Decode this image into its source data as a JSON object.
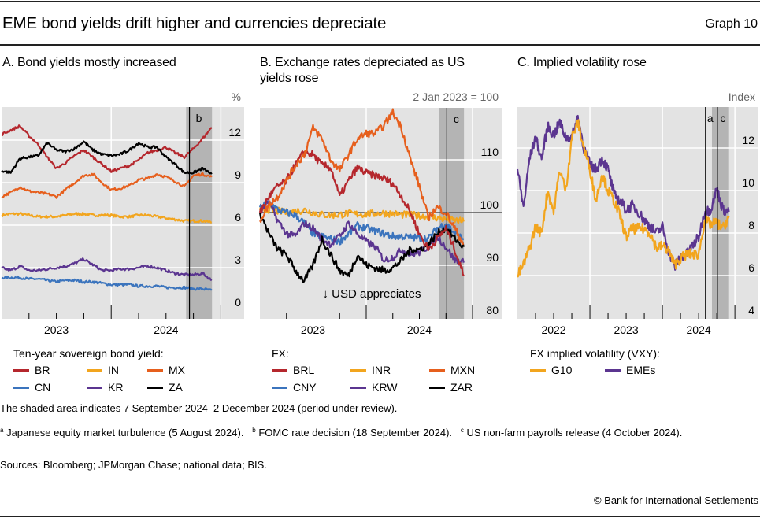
{
  "title": "EME bond yields drift higher and currencies depreciate",
  "graph_label": "Graph 10",
  "panels": [
    {
      "title": "A. Bond yields mostly increased",
      "unit": "%",
      "legend_title": "Ten-year sovereign bond yield:",
      "legend": [
        "BR",
        "IN",
        "MX",
        "CN",
        "KR",
        "ZA"
      ],
      "event_labels": [
        "b"
      ]
    },
    {
      "title_line1": "B. Exchange rates depreciated as US",
      "title_line2": "yields rose",
      "unit": "2 Jan 2023 = 100",
      "legend_title": "FX:",
      "legend": [
        "BRL",
        "INR",
        "MXN",
        "CNY",
        "KRW",
        "ZAR"
      ],
      "event_labels": [
        "c"
      ],
      "annotation": "↓ USD appreciates"
    },
    {
      "title": "C. Implied volatility rose",
      "unit": "Index",
      "legend_title": "FX implied volatility (VXY):",
      "legend": [
        "G10",
        "EMEs"
      ],
      "event_labels": [
        "a",
        "c"
      ]
    }
  ],
  "colors": {
    "BR": "#b5272d",
    "IN": "#f2a51e",
    "MX": "#e65f1d",
    "CN": "#3b74bd",
    "KR": "#5b3590",
    "ZA": "#000000",
    "background": "#e3e3e3",
    "shade": "#b4b4b4"
  },
  "chart_data": [
    {
      "type": "line",
      "title": "A. Bond yields mostly increased",
      "ylabel": "%",
      "ylim": [
        0,
        14.4
      ],
      "yticks": [
        0,
        3,
        6,
        9,
        12
      ],
      "xtick_labels": [
        "2023",
        "2024"
      ],
      "grid": true,
      "legend": "bottom",
      "shaded_period": [
        "2024-09-07",
        "2024-12-02"
      ],
      "events": [
        {
          "label": "b",
          "date": "2024-09-18"
        }
      ],
      "x": [
        "2023-01",
        "2023-02",
        "2023-03",
        "2023-04",
        "2023-05",
        "2023-06",
        "2023-07",
        "2023-08",
        "2023-09",
        "2023-10",
        "2023-11",
        "2023-12",
        "2024-01",
        "2024-02",
        "2024-03",
        "2024-04",
        "2024-05",
        "2024-06",
        "2024-07",
        "2024-08",
        "2024-09",
        "2024-10",
        "2024-11",
        "2024-12"
      ],
      "series": [
        {
          "name": "IN",
          "color": "#f2a51e",
          "values": [
            6.7,
            6.8,
            6.8,
            6.7,
            6.6,
            6.6,
            6.6,
            6.7,
            6.8,
            6.8,
            6.7,
            6.7,
            6.7,
            6.6,
            6.6,
            6.7,
            6.7,
            6.6,
            6.5,
            6.4,
            6.3,
            6.3,
            6.3,
            6.2
          ]
        },
        {
          "name": "CN",
          "color": "#3b74bd",
          "values": [
            2.3,
            2.3,
            2.3,
            2.2,
            2.2,
            2.1,
            2.0,
            2.1,
            2.1,
            2.0,
            2.0,
            1.9,
            1.8,
            1.8,
            1.8,
            1.7,
            1.7,
            1.7,
            1.6,
            1.6,
            1.6,
            1.5,
            1.5,
            1.4
          ]
        },
        {
          "name": "KR",
          "color": "#5b3590",
          "values": [
            3.0,
            2.8,
            3.1,
            2.8,
            2.8,
            2.9,
            3.0,
            3.1,
            3.3,
            3.6,
            3.2,
            2.8,
            2.8,
            2.9,
            2.9,
            3.0,
            3.1,
            3.0,
            2.8,
            2.6,
            2.5,
            2.5,
            2.6,
            2.1
          ]
        },
        {
          "name": "MX",
          "color": "#e65f1d",
          "values": [
            8.0,
            8.3,
            8.7,
            8.4,
            8.3,
            8.2,
            8.0,
            8.5,
            9.0,
            9.5,
            9.6,
            9.0,
            8.5,
            8.6,
            8.8,
            9.2,
            9.3,
            9.6,
            9.4,
            9.1,
            8.7,
            9.5,
            9.6,
            9.4
          ]
        },
        {
          "name": "BR",
          "color": "#b5272d",
          "values": [
            12.4,
            12.7,
            13.0,
            12.3,
            11.7,
            10.8,
            10.0,
            10.4,
            10.9,
            11.3,
            10.8,
            10.3,
            9.8,
            10.0,
            10.2,
            10.6,
            11.1,
            11.3,
            11.5,
            11.1,
            10.8,
            11.4,
            12.1,
            12.9
          ]
        },
        {
          "name": "ZA",
          "color": "#000000",
          "values": [
            9.85,
            9.7,
            10.7,
            10.8,
            10.9,
            11.8,
            11.3,
            11.2,
            11.4,
            11.9,
            11.3,
            11.0,
            10.9,
            11.0,
            11.3,
            11.8,
            11.5,
            11.5,
            10.8,
            10.3,
            9.7,
            9.7,
            10.0,
            9.6
          ]
        }
      ]
    },
    {
      "type": "line",
      "title": "B. Exchange rates depreciated as US yields rose",
      "ylabel": "2 Jan 2023 = 100",
      "ylim": [
        80,
        120
      ],
      "yticks": [
        80,
        90,
        100,
        110
      ],
      "reference_line": 100,
      "xtick_labels": [
        "2023",
        "2024"
      ],
      "grid": true,
      "legend": "bottom",
      "shaded_period": [
        "2024-09-07",
        "2024-12-02"
      ],
      "events": [
        {
          "label": "c",
          "date": "2024-10-04"
        }
      ],
      "annotations": [
        "↓ USD appreciates"
      ],
      "x": [
        "2023-01",
        "2023-02",
        "2023-03",
        "2023-04",
        "2023-05",
        "2023-06",
        "2023-07",
        "2023-08",
        "2023-09",
        "2023-10",
        "2023-11",
        "2023-12",
        "2024-01",
        "2024-02",
        "2024-03",
        "2024-04",
        "2024-05",
        "2024-06",
        "2024-07",
        "2024-08",
        "2024-09",
        "2024-10",
        "2024-11",
        "2024-12"
      ],
      "series": [
        {
          "name": "INR",
          "color": "#f2a51e",
          "values": [
            100.5,
            100.6,
            100.3,
            100,
            100.2,
            100.5,
            100,
            99.6,
            99.5,
            99.6,
            99.8,
            99.7,
            99.7,
            99.8,
            99.9,
            99.8,
            99.6,
            99.5,
            99.4,
            99.2,
            99.0,
            98.7,
            98.5,
            98.3
          ]
        },
        {
          "name": "CNY",
          "color": "#3b74bd",
          "values": [
            101,
            102,
            100.5,
            100,
            99.5,
            98,
            96,
            95.5,
            95,
            94.5,
            96,
            97.5,
            97,
            96.5,
            96,
            95.5,
            95.5,
            95.3,
            95.2,
            95,
            97,
            98,
            96,
            95
          ]
        },
        {
          "name": "KRW",
          "color": "#5b3590",
          "values": [
            100,
            102,
            98.5,
            96,
            95.5,
            98,
            97,
            95,
            94,
            95.5,
            98,
            96,
            94.5,
            93.5,
            91,
            91.5,
            93,
            92,
            92.5,
            93.5,
            95.5,
            93.5,
            91,
            90.5
          ]
        },
        {
          "name": "ZAR",
          "color": "#000000",
          "values": [
            100,
            96,
            93,
            92,
            89,
            87,
            90,
            95,
            92,
            89,
            88,
            92,
            90,
            89.5,
            89,
            89.5,
            91,
            93,
            93,
            94,
            96,
            97,
            95,
            93.5
          ]
        },
        {
          "name": "BRL",
          "color": "#b5272d",
          "values": [
            100,
            103,
            105,
            106,
            109,
            111.5,
            111,
            109,
            108.5,
            103,
            106,
            108.5,
            107.5,
            107,
            106.5,
            105.5,
            103,
            100,
            96,
            93,
            95,
            97,
            93,
            88
          ]
        },
        {
          "name": "MXN",
          "color": "#e65f1d",
          "values": [
            98.5,
            101.5,
            103,
            106,
            109,
            111,
            116,
            114,
            110,
            108,
            111,
            114,
            115,
            115,
            116.5,
            119,
            116,
            110,
            105,
            99,
            101,
            100,
            97,
            94
          ]
        }
      ]
    },
    {
      "type": "line",
      "title": "C. Implied volatility rose",
      "ylabel": "Index",
      "ylim": [
        4,
        13.9
      ],
      "yticks": [
        4,
        6,
        8,
        10,
        12
      ],
      "xtick_labels": [
        "2022",
        "2023",
        "2024"
      ],
      "grid": true,
      "legend": "bottom",
      "shaded_period": [
        "2024-09-07",
        "2024-12-02"
      ],
      "events": [
        {
          "label": "a",
          "date": "2024-08-05"
        },
        {
          "label": "c",
          "date": "2024-10-04"
        }
      ],
      "x": [
        "2022-01",
        "2022-02",
        "2022-03",
        "2022-04",
        "2022-05",
        "2022-06",
        "2022-07",
        "2022-08",
        "2022-09",
        "2022-10",
        "2022-11",
        "2022-12",
        "2023-01",
        "2023-02",
        "2023-03",
        "2023-04",
        "2023-05",
        "2023-06",
        "2023-07",
        "2023-08",
        "2023-09",
        "2023-10",
        "2023-11",
        "2023-12",
        "2024-01",
        "2024-02",
        "2024-03",
        "2024-04",
        "2024-05",
        "2024-06",
        "2024-07",
        "2024-08",
        "2024-09",
        "2024-10",
        "2024-11",
        "2024-12"
      ],
      "series": [
        {
          "name": "EMEs",
          "color": "#5b3590",
          "values": [
            11.0,
            9.2,
            11.5,
            12.5,
            11.5,
            13.0,
            12.6,
            13.2,
            12.5,
            12.5,
            13.5,
            12.0,
            11.2,
            11.0,
            11.5,
            11.0,
            9.8,
            9.5,
            9.1,
            9.3,
            9.0,
            8.6,
            8.3,
            8.0,
            8.3,
            7.2,
            6.4,
            6.9,
            7.0,
            7.4,
            7.8,
            9.0,
            9.1,
            10.1,
            9.1,
            9.0
          ]
        },
        {
          "name": "G10",
          "color": "#f2a51e",
          "values": [
            6.0,
            6.5,
            7.3,
            8.3,
            8.0,
            10.0,
            9.0,
            11.0,
            10.0,
            12.5,
            13.2,
            12.0,
            11.0,
            9.5,
            10.8,
            10.0,
            9.5,
            8.8,
            7.8,
            8.2,
            8.2,
            8.2,
            8.0,
            7.3,
            7.4,
            7.2,
            6.5,
            6.8,
            7.0,
            7.0,
            7.0,
            8.6,
            8.4,
            8.5,
            8.2,
            8.8
          ]
        }
      ]
    }
  ],
  "footnotes": {
    "shaded": "The shaded area indicates 7 September 2024–2 December 2024 (period under review).",
    "a_mark": "a",
    "a_text": "Japanese equity market turbulence (5 August 2024).",
    "b_mark": "b",
    "b_text": "FOMC rate decision (18 September 2024).",
    "c_mark": "c",
    "c_text": "US non-farm payrolls release (4 October 2024).",
    "sources": "Sources: Bloomberg; JPMorgan Chase; national data; BIS."
  },
  "copyright": "© Bank for International Settlements"
}
